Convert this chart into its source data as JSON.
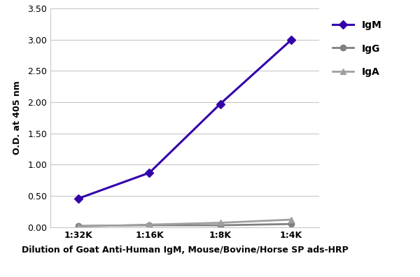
{
  "x_labels": [
    "1:32K",
    "1:16K",
    "1:8K",
    "1:4K"
  ],
  "x_positions": [
    1,
    2,
    3,
    4
  ],
  "IgM_values": [
    0.46,
    0.87,
    1.97,
    2.99
  ],
  "IgG_values": [
    0.02,
    0.03,
    0.03,
    0.05
  ],
  "IgA_values": [
    0.01,
    0.04,
    0.07,
    0.12
  ],
  "IgM_color": "#3300AA",
  "IgG_color": "#808080",
  "IgA_color": "#A0A0A0",
  "ylabel": "O.D. at 405 nm",
  "xlabel": "Dilution of Goat Anti-Human IgM, Mouse/Bovine/Horse SP ads-HRP",
  "ylim": [
    0,
    3.5
  ],
  "yticks": [
    0.0,
    0.5,
    1.0,
    1.5,
    2.0,
    2.5,
    3.0,
    3.5
  ],
  "legend_labels": [
    "IgM",
    "IgG",
    "IgA"
  ],
  "background_color": "#ffffff",
  "grid_color": "#c8c8c8",
  "axis_fontsize": 9,
  "legend_fontsize": 10,
  "tick_fontsize": 9
}
